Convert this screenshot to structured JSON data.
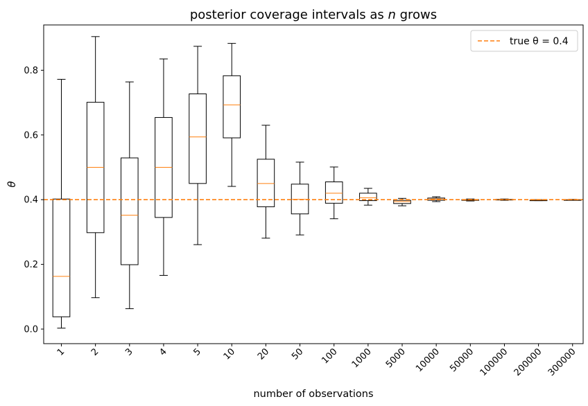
{
  "chart_data": {
    "type": "box",
    "title": "posterior coverage intervals as n grows",
    "title_prefix": "posterior coverage intervals as ",
    "title_var": "n",
    "title_suffix": " grows",
    "xlabel": "number of observations",
    "ylabel": "θ",
    "ylim": [
      -0.045,
      0.94
    ],
    "yticks": [
      0.0,
      0.2,
      0.4,
      0.6,
      0.8
    ],
    "ytick_labels": [
      "0.0",
      "0.2",
      "0.4",
      "0.6",
      "0.8"
    ],
    "categories": [
      "1",
      "2",
      "3",
      "4",
      "5",
      "10",
      "20",
      "50",
      "100",
      "1000",
      "5000",
      "10000",
      "50000",
      "100000",
      "200000",
      "300000"
    ],
    "boxes": [
      {
        "whislo": 0.003,
        "q1": 0.038,
        "med": 0.163,
        "q3": 0.402,
        "whishi": 0.772
      },
      {
        "whislo": 0.097,
        "q1": 0.298,
        "med": 0.5,
        "q3": 0.701,
        "whishi": 0.904
      },
      {
        "whislo": 0.063,
        "q1": 0.199,
        "med": 0.352,
        "q3": 0.529,
        "whishi": 0.764
      },
      {
        "whislo": 0.166,
        "q1": 0.345,
        "med": 0.5,
        "q3": 0.654,
        "whishi": 0.835
      },
      {
        "whislo": 0.261,
        "q1": 0.45,
        "med": 0.594,
        "q3": 0.727,
        "whishi": 0.874
      },
      {
        "whislo": 0.441,
        "q1": 0.591,
        "med": 0.693,
        "q3": 0.783,
        "whishi": 0.883
      },
      {
        "whislo": 0.281,
        "q1": 0.378,
        "med": 0.45,
        "q3": 0.525,
        "whishi": 0.63
      },
      {
        "whislo": 0.291,
        "q1": 0.356,
        "med": 0.401,
        "q3": 0.448,
        "whishi": 0.516
      },
      {
        "whislo": 0.341,
        "q1": 0.389,
        "med": 0.42,
        "q3": 0.455,
        "whishi": 0.501
      },
      {
        "whislo": 0.383,
        "q1": 0.397,
        "med": 0.406,
        "q3": 0.42,
        "whishi": 0.435
      },
      {
        "whislo": 0.381,
        "q1": 0.388,
        "med": 0.394,
        "q3": 0.398,
        "whishi": 0.404
      },
      {
        "whislo": 0.394,
        "q1": 0.398,
        "med": 0.402,
        "q3": 0.405,
        "whishi": 0.409
      },
      {
        "whislo": 0.396,
        "q1": 0.398,
        "med": 0.399,
        "q3": 0.4,
        "whishi": 0.402
      },
      {
        "whislo": 0.398,
        "q1": 0.399,
        "med": 0.4,
        "q3": 0.401,
        "whishi": 0.402
      },
      {
        "whislo": 0.397,
        "q1": 0.398,
        "med": 0.399,
        "q3": 0.399,
        "whishi": 0.4
      },
      {
        "whislo": 0.399,
        "q1": 0.4,
        "med": 0.4,
        "q3": 0.4,
        "whishi": 0.401
      }
    ],
    "reference_line": {
      "value": 0.4,
      "label": "true θ = 0.4",
      "color": "#ff7f0e",
      "style": "dashed"
    },
    "legend": {
      "position": "top-right",
      "entries": [
        "true θ = 0.4"
      ]
    },
    "colors": {
      "box": "#000000",
      "median": "#ff7f0e",
      "reference": "#ff7f0e"
    },
    "grid": false
  }
}
